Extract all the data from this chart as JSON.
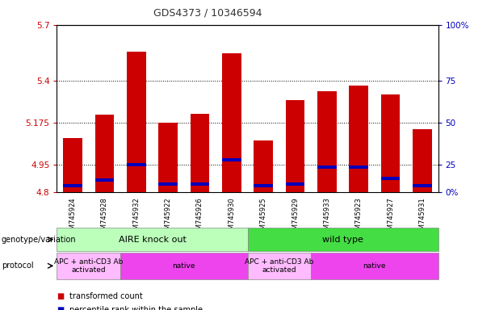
{
  "title": "GDS4373 / 10346594",
  "samples": [
    "GSM745924",
    "GSM745928",
    "GSM745932",
    "GSM745922",
    "GSM745926",
    "GSM745930",
    "GSM745925",
    "GSM745929",
    "GSM745933",
    "GSM745923",
    "GSM745927",
    "GSM745931"
  ],
  "red_values": [
    5.09,
    5.215,
    5.555,
    5.175,
    5.22,
    5.545,
    5.08,
    5.295,
    5.345,
    5.375,
    5.325,
    5.14
  ],
  "blue_bottom": [
    4.825,
    4.855,
    4.94,
    4.835,
    4.835,
    4.965,
    4.825,
    4.835,
    4.925,
    4.925,
    4.865,
    4.825
  ],
  "blue_height": [
    0.018,
    0.018,
    0.018,
    0.018,
    0.018,
    0.018,
    0.018,
    0.018,
    0.018,
    0.018,
    0.018,
    0.018
  ],
  "ymin": 4.8,
  "ymax": 5.7,
  "yticks_left": [
    4.8,
    4.95,
    5.175,
    5.4,
    5.7
  ],
  "right_labels": [
    "0%",
    "25",
    "50",
    "75",
    "100%"
  ],
  "right_tick_positions": [
    4.8,
    4.95,
    5.175,
    5.4,
    5.7
  ],
  "bar_color": "#cc0000",
  "blue_color": "#0000bb",
  "bg_color": "#ffffff",
  "left_tick_color": "#cc0000",
  "right_tick_color": "#0000bb",
  "bar_width": 0.6,
  "genotype_label": "genotype/variation",
  "protocol_label": "protocol",
  "groups": [
    {
      "label": "AIRE knock out",
      "start": 0,
      "end": 5,
      "color": "#bbffbb"
    },
    {
      "label": "wild type",
      "start": 6,
      "end": 11,
      "color": "#44dd44"
    }
  ],
  "protocols": [
    {
      "label": "APC + anti-CD3 Ab\nactivated",
      "start": 0,
      "end": 1,
      "color": "#ffbbff"
    },
    {
      "label": "native",
      "start": 2,
      "end": 5,
      "color": "#ee44ee"
    },
    {
      "label": "APC + anti-CD3 Ab\nactivated",
      "start": 6,
      "end": 7,
      "color": "#ffbbff"
    },
    {
      "label": "native",
      "start": 8,
      "end": 11,
      "color": "#ee44ee"
    }
  ],
  "legend_red": "transformed count",
  "legend_blue": "percentile rank within the sample"
}
